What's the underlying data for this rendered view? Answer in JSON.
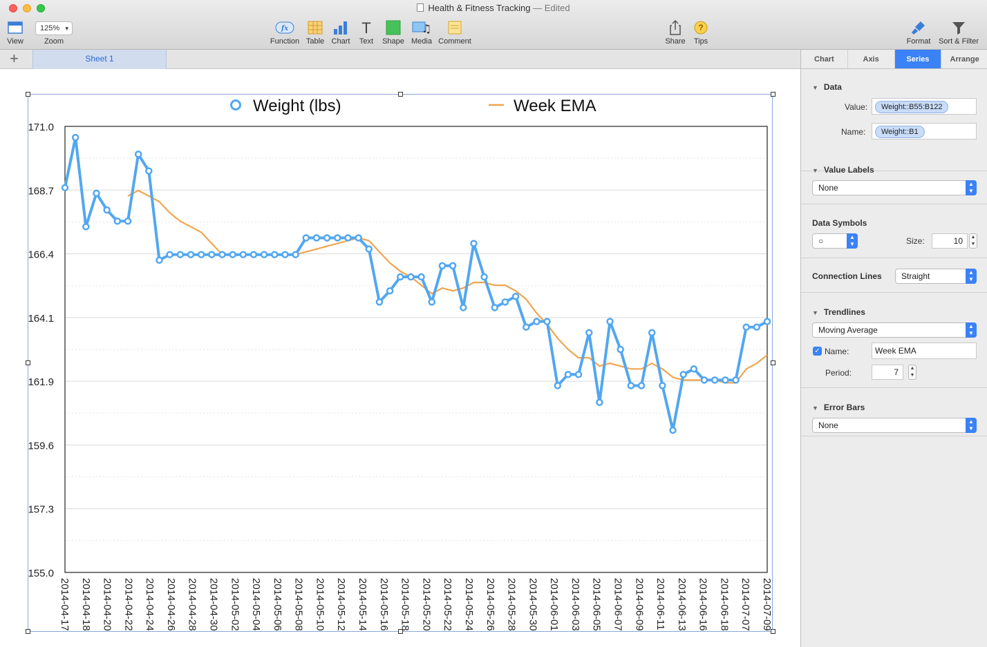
{
  "window": {
    "title": "Health & Fitness Tracking",
    "status": "Edited"
  },
  "toolbar": {
    "view": "View",
    "zoom_value": "125%",
    "zoom": "Zoom",
    "function": "Function",
    "table": "Table",
    "chart": "Chart",
    "text": "Text",
    "shape": "Shape",
    "media": "Media",
    "comment": "Comment",
    "share": "Share",
    "tips": "Tips",
    "format": "Format",
    "sort_filter": "Sort & Filter"
  },
  "sheets": {
    "add": "+",
    "active": "Sheet 1"
  },
  "inspector": {
    "tabs": [
      "Chart",
      "Axis",
      "Series",
      "Arrange"
    ],
    "data": {
      "header": "Data",
      "value_label": "Value:",
      "value": "Weight::B55:B122",
      "name_label": "Name:",
      "name": "Weight::B1"
    },
    "value_labels": {
      "header": "Value Labels",
      "selected": "None"
    },
    "data_symbols": {
      "header": "Data Symbols",
      "symbol": "○",
      "size_label": "Size:",
      "size": "10"
    },
    "connection_lines": {
      "header": "Connection Lines",
      "selected": "Straight"
    },
    "trendlines": {
      "header": "Trendlines",
      "type": "Moving Average",
      "name_label": "Name:",
      "name": "Week EMA",
      "period_label": "Period:",
      "period": "7"
    },
    "error_bars": {
      "header": "Error Bars",
      "selected": "None"
    }
  },
  "colors": {
    "weight": "#52a7f0",
    "ema": "#f0a550",
    "accent": "#3a82f6"
  },
  "chart_data": {
    "type": "line",
    "legend": [
      "Weight (lbs)",
      "Week EMA"
    ],
    "legend_position": "top",
    "ylim": [
      155.0,
      171.0
    ],
    "yticks": [
      "171.0",
      "168.7",
      "166.4",
      "164.1",
      "161.9",
      "159.6",
      "157.3",
      "155.0"
    ],
    "xticks": [
      "2014-04-17",
      "2014-04-18",
      "2014-04-20",
      "2014-04-22",
      "2014-04-24",
      "2014-04-26",
      "2014-04-28",
      "2014-04-30",
      "2014-05-02",
      "2014-05-04",
      "2014-05-06",
      "2014-05-08",
      "2014-05-10",
      "2014-05-12",
      "2014-05-14",
      "2014-05-16",
      "2014-05-18",
      "2014-05-20",
      "2014-05-22",
      "2014-05-24",
      "2014-05-26",
      "2014-05-28",
      "2014-05-30",
      "2014-06-01",
      "2014-06-03",
      "2014-06-05",
      "2014-06-07",
      "2014-06-09",
      "2014-06-11",
      "2014-06-13",
      "2014-06-16",
      "2014-06-18",
      "2014-07-07",
      "2014-07-09"
    ],
    "grid": true,
    "series": [
      {
        "name": "Weight (lbs)",
        "marker": "circle",
        "values": [
          168.8,
          170.6,
          167.4,
          168.6,
          168.0,
          167.6,
          167.6,
          170.0,
          169.4,
          166.2,
          166.4,
          166.4,
          166.4,
          166.4,
          166.4,
          166.4,
          166.4,
          166.4,
          166.4,
          166.4,
          166.4,
          166.4,
          166.4,
          167.0,
          167.0,
          167.0,
          167.0,
          167.0,
          167.0,
          166.6,
          164.7,
          165.1,
          165.6,
          165.6,
          165.6,
          164.7,
          166.0,
          166.0,
          164.5,
          166.8,
          165.6,
          164.5,
          164.7,
          164.9,
          163.8,
          164.0,
          164.0,
          161.7,
          162.1,
          162.1,
          163.6,
          161.1,
          164.0,
          163.0,
          161.7,
          161.7,
          163.6,
          161.7,
          160.1,
          162.1,
          162.3,
          161.9,
          161.9,
          161.9,
          161.9,
          163.8,
          163.8,
          164.0
        ]
      },
      {
        "name": "Week EMA",
        "marker": "none",
        "values": [
          null,
          null,
          null,
          null,
          null,
          null,
          168.5,
          168.7,
          168.5,
          168.3,
          167.9,
          167.6,
          167.4,
          167.2,
          166.8,
          166.4,
          166.4,
          166.4,
          166.4,
          166.4,
          166.4,
          166.4,
          166.4,
          166.5,
          166.6,
          166.7,
          166.8,
          166.9,
          167.0,
          166.9,
          166.5,
          166.1,
          165.8,
          165.6,
          165.3,
          165.0,
          165.2,
          165.1,
          165.2,
          165.4,
          165.4,
          165.3,
          165.3,
          165.1,
          164.8,
          164.3,
          163.9,
          163.4,
          163.0,
          162.7,
          162.7,
          162.4,
          162.5,
          162.4,
          162.3,
          162.3,
          162.5,
          162.3,
          162.0,
          161.9,
          161.9,
          161.9,
          161.9,
          161.8,
          161.8,
          162.3,
          162.5,
          162.8
        ]
      }
    ]
  }
}
